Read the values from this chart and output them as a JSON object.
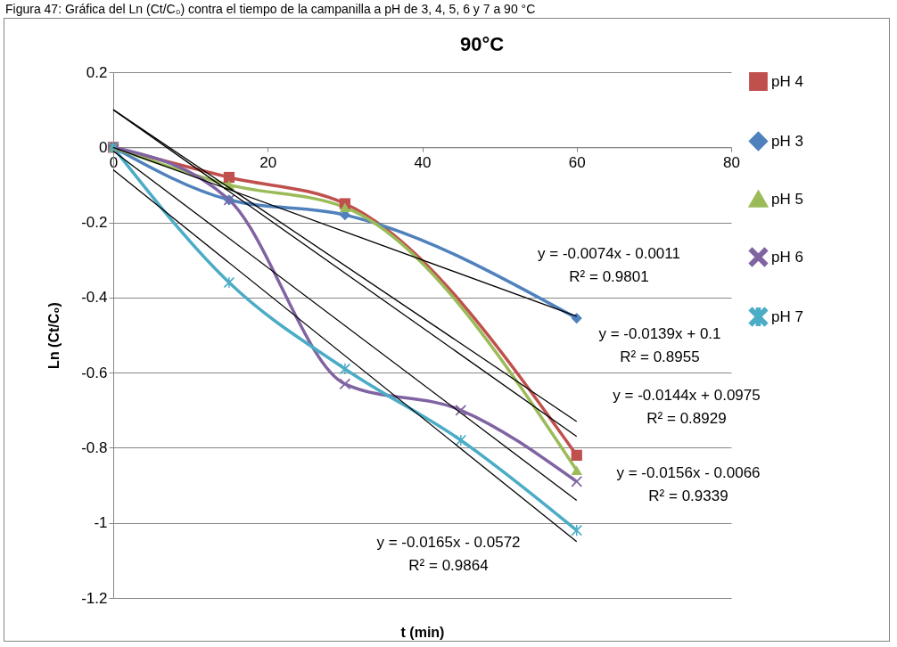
{
  "chart_data": {
    "type": "line",
    "title": "90°C",
    "xlabel": "t (min)",
    "ylabel": "Ln (Ct/C₀)",
    "xlim": [
      0,
      80
    ],
    "xticks": [
      0,
      20,
      40,
      60,
      80
    ],
    "ylim": [
      -1.2,
      0.2
    ],
    "yticks": [
      -1.2,
      -1,
      -0.8,
      -0.6,
      -0.4,
      -0.2,
      0,
      0.2
    ],
    "grid": "y",
    "legend": "right",
    "series": [
      {
        "name": "pH 4",
        "color": "#c0504d",
        "marker": "square",
        "x": [
          0,
          15,
          30,
          60
        ],
        "values": [
          0,
          -0.08,
          -0.15,
          -0.82
        ]
      },
      {
        "name": "pH 3",
        "color": "#4f81bd",
        "marker": "diamond",
        "x": [
          0,
          15,
          30,
          60
        ],
        "values": [
          0,
          -0.14,
          -0.18,
          -0.455
        ]
      },
      {
        "name": "pH 5",
        "color": "#9bbb59",
        "marker": "triangle",
        "x": [
          0,
          15,
          30,
          60
        ],
        "values": [
          0,
          -0.1,
          -0.16,
          -0.86
        ]
      },
      {
        "name": "pH 6",
        "color": "#8064a2",
        "marker": "cross",
        "x": [
          0,
          15,
          30,
          45,
          60
        ],
        "values": [
          0,
          -0.14,
          -0.63,
          -0.7,
          -0.89
        ]
      },
      {
        "name": "pH 7",
        "color": "#4bacc6",
        "marker": "star",
        "x": [
          0,
          15,
          30,
          45,
          60
        ],
        "values": [
          0,
          -0.36,
          -0.59,
          -0.78,
          -1.02
        ]
      },
      {
        "type": "line",
        "color": "#000000",
        "marker": "none",
        "x": [
          0,
          60
        ],
        "values": [
          0,
          -0.45
        ]
      },
      {
        "type": "line",
        "color": "#000000",
        "marker": "none",
        "x": [
          0,
          60
        ],
        "values": [
          0.1,
          -0.73
        ]
      },
      {
        "type": "line",
        "color": "#000000",
        "marker": "none",
        "x": [
          0,
          60
        ],
        "values": [
          0.1,
          -0.77
        ]
      },
      {
        "type": "line",
        "color": "#000000",
        "marker": "none",
        "x": [
          0,
          60
        ],
        "values": [
          -0.01,
          -0.94
        ]
      },
      {
        "type": "line",
        "color": "#000000",
        "marker": "none",
        "x": [
          0,
          60
        ],
        "values": [
          -0.06,
          -1.05
        ]
      }
    ],
    "annotations": [
      "Figura 47: Gráfica del Ln (Ct/C₀) contra el tiempo de la campanilla a pH de 3, 4, 5, 6 y 7 a 90 °C",
      "y = -0.0074x - 0.0011\nR² = 0.9801",
      "y = -0.0139x + 0.1\nR² = 0.8955",
      "y = -0.0144x + 0.0975\nR² = 0.8929",
      "y = -0.0156x - 0.0066\nR² = 0.9339",
      "y = -0.0165x - 0.0572\nR² = 0.9864"
    ]
  }
}
